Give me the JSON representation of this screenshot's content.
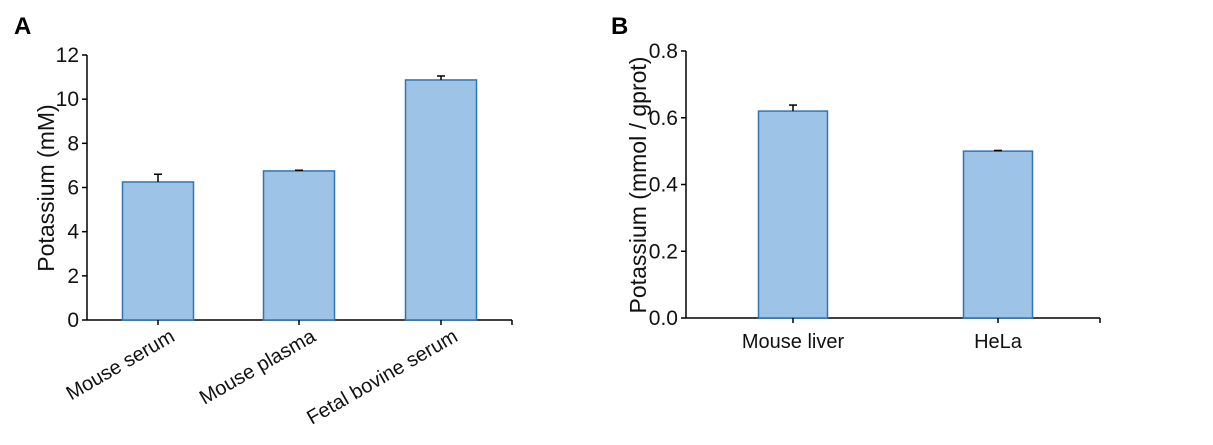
{
  "chart_data": [
    {
      "panel_label": "A",
      "type": "bar",
      "categories": [
        "Mouse serum",
        "Mouse plasma",
        "Fetal bovine serum"
      ],
      "values": [
        6.25,
        6.75,
        10.87
      ],
      "error_upper": [
        0.35,
        0.03,
        0.18
      ],
      "ylabel": "Potassium (mM)",
      "xlabel": "",
      "ylim": [
        0,
        12
      ],
      "yticks": [
        "0",
        "2",
        "4",
        "6",
        "8",
        "10",
        "12"
      ],
      "grid": false,
      "x_label_rotation": "rotated"
    },
    {
      "panel_label": "B",
      "type": "bar",
      "categories": [
        "Mouse liver",
        "HeLa"
      ],
      "values": [
        0.62,
        0.5
      ],
      "error_upper": [
        0.018,
        0.002
      ],
      "ylabel": "Potassium (mmol / gprot)",
      "xlabel": "",
      "ylim": [
        0,
        0.8
      ],
      "yticks": [
        "0.0",
        "0.2",
        "0.4",
        "0.6",
        "0.8"
      ],
      "grid": false,
      "x_label_rotation": "horizontal"
    }
  ],
  "colors": {
    "bar_fill": "#9dc3e6",
    "bar_edge": "#2e75b6",
    "axis": "#000000"
  }
}
